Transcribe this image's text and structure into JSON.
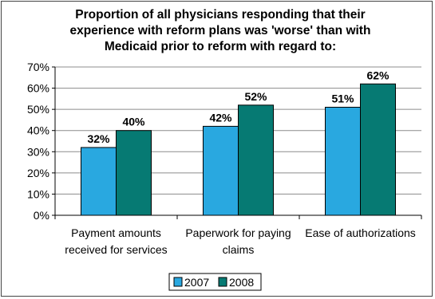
{
  "chart_data": {
    "type": "bar",
    "title_lines": [
      "Proportion of all physicians responding that their",
      "experience with reform plans was 'worse' than with",
      "Medicaid prior to reform with regard to:"
    ],
    "categories": [
      [
        "Payment amounts",
        "received for services"
      ],
      [
        "Paperwork for paying",
        "claims"
      ],
      [
        "Ease of authorizations"
      ]
    ],
    "series": [
      {
        "name": "2007",
        "values": [
          32,
          42,
          51
        ],
        "labels": [
          "32%",
          "42%",
          "51%"
        ],
        "color": "#29a8e0"
      },
      {
        "name": "2008",
        "values": [
          40,
          52,
          62
        ],
        "labels": [
          "40%",
          "52%",
          "62%"
        ],
        "color": "#067a73"
      }
    ],
    "ylim": [
      0,
      70
    ],
    "yticks": [
      0,
      10,
      20,
      30,
      40,
      50,
      60,
      70
    ],
    "ytick_labels": [
      "0%",
      "10%",
      "20%",
      "30%",
      "40%",
      "50%",
      "60%",
      "70%"
    ],
    "grid": true,
    "legend_position": "bottom"
  }
}
